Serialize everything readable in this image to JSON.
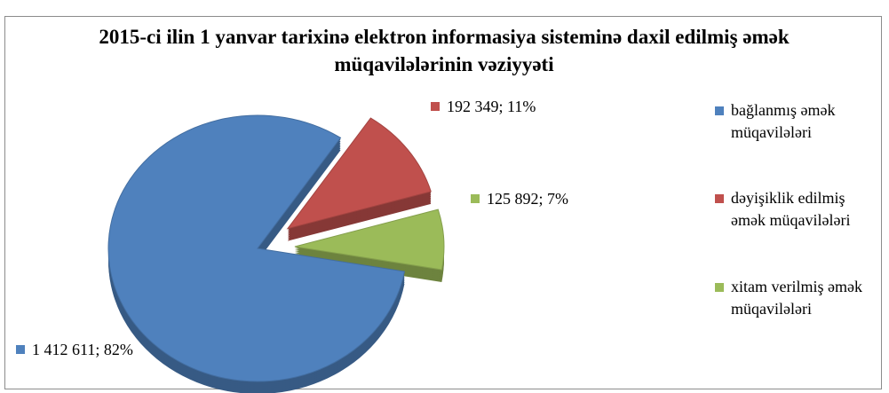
{
  "chart_data": {
    "type": "pie",
    "title": "2015-ci ilin 1 yanvar tarixinə elektron informasiya sisteminə daxil edilmiş əmək müqavilələrinin vəziyyəti",
    "categories": [
      "bağlanmış əmək müqavilələri",
      "dəyişiklik edilmiş əmək müqavilələri",
      "xitam verilmiş əmək müqavilələri"
    ],
    "values": [
      1412611,
      192349,
      125892
    ],
    "value_labels": [
      "1 412 611; 82%",
      "192 349; 11%",
      "125 892; 7%"
    ],
    "colors": [
      "#4f81bd",
      "#c0504d",
      "#9bbb59"
    ],
    "legend": "right"
  }
}
